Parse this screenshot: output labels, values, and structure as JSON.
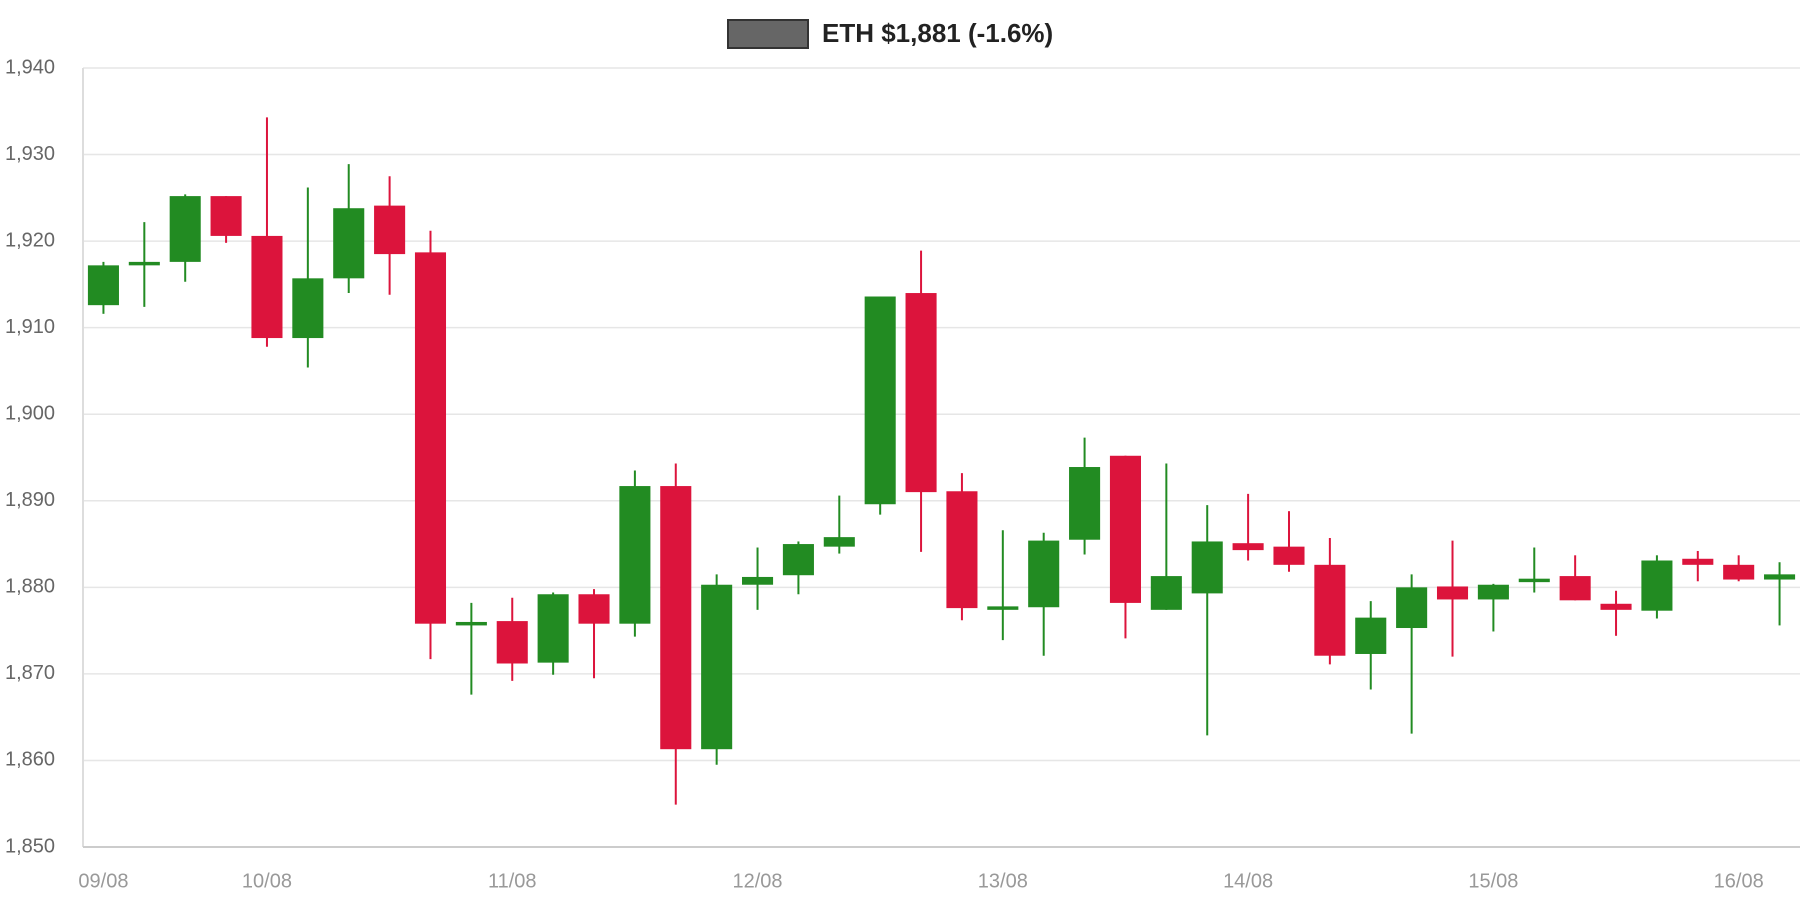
{
  "chart_data": {
    "type": "candlestick",
    "categories": [
      "09/08",
      null,
      null,
      null,
      "10/08",
      null,
      null,
      null,
      null,
      null,
      "11/08",
      null,
      null,
      null,
      null,
      null,
      "12/08",
      null,
      null,
      null,
      null,
      null,
      "13/08",
      null,
      null,
      null,
      null,
      null,
      "14/08",
      null,
      null,
      null,
      null,
      null,
      "15/08",
      null,
      null,
      null,
      null,
      null,
      "16/08",
      null
    ],
    "series": [
      {
        "name": "ETH $1,881 (-1.6%)",
        "color": "#666666",
        "up_color": "#228b22",
        "down_color": "#dc143c",
        "open": [
          1912.6,
          1917.2,
          1917.6,
          1925.2,
          1920.6,
          1908.8,
          1915.7,
          1924.1,
          1918.7,
          1875.6,
          1876.1,
          1871.3,
          1879.2,
          1875.8,
          1891.7,
          1861.3,
          1880.3,
          1881.4,
          1884.7,
          1889.6,
          1914.0,
          1891.1,
          1877.4,
          1877.7,
          1885.5,
          1895.2,
          1877.4,
          1879.3,
          1885.1,
          1884.7,
          1882.6,
          1872.3,
          1875.3,
          1880.1,
          1878.6,
          1880.6,
          1881.3,
          1878.1,
          1877.3,
          1883.3,
          1882.6,
          1880.9
        ],
        "high": [
          1917.6,
          1922.2,
          1925.4,
          1925.2,
          1934.3,
          1926.2,
          1928.9,
          1927.5,
          1921.2,
          1878.2,
          1878.8,
          1879.4,
          1879.8,
          1893.5,
          1894.3,
          1881.5,
          1884.6,
          1885.3,
          1890.6,
          1913.6,
          1918.9,
          1893.2,
          1886.6,
          1886.3,
          1897.3,
          1895.2,
          1894.3,
          1889.5,
          1890.8,
          1888.8,
          1885.7,
          1878.4,
          1881.5,
          1885.4,
          1880.4,
          1884.6,
          1883.7,
          1879.6,
          1883.7,
          1884.2,
          1883.7,
          1882.9
        ],
        "low": [
          1911.6,
          1912.4,
          1915.3,
          1919.8,
          1907.8,
          1905.4,
          1914.0,
          1913.8,
          1871.7,
          1867.6,
          1869.2,
          1869.9,
          1869.5,
          1874.3,
          1854.9,
          1859.5,
          1877.4,
          1879.2,
          1883.9,
          1888.4,
          1884.1,
          1876.2,
          1873.9,
          1872.1,
          1883.8,
          1874.1,
          1877.4,
          1862.9,
          1883.1,
          1881.8,
          1871.1,
          1868.2,
          1863.1,
          1872.0,
          1874.9,
          1879.4,
          1878.5,
          1874.4,
          1876.4,
          1880.7,
          1880.7,
          1875.6
        ],
        "close": [
          1917.2,
          1917.6,
          1925.2,
          1920.6,
          1908.8,
          1915.7,
          1923.8,
          1918.5,
          1875.8,
          1876.0,
          1871.2,
          1879.2,
          1875.8,
          1891.7,
          1861.3,
          1880.3,
          1881.2,
          1885.0,
          1885.8,
          1913.6,
          1891.0,
          1877.6,
          1877.8,
          1885.4,
          1893.9,
          1878.2,
          1881.3,
          1885.3,
          1884.3,
          1882.6,
          1872.1,
          1876.5,
          1880.0,
          1878.6,
          1880.3,
          1881.0,
          1878.5,
          1877.4,
          1883.1,
          1882.6,
          1880.9,
          1881.5
        ]
      }
    ],
    "ylim": [
      1850,
      1940
    ],
    "yticks": [
      {
        "value": 1850,
        "label": "1,850"
      },
      {
        "value": 1860,
        "label": "1,860"
      },
      {
        "value": 1870,
        "label": "1,870"
      },
      {
        "value": 1880,
        "label": "1,880"
      },
      {
        "value": 1890,
        "label": "1,890"
      },
      {
        "value": 1900,
        "label": "1,900"
      },
      {
        "value": 1910,
        "label": "1,910"
      },
      {
        "value": 1920,
        "label": "1,920"
      },
      {
        "value": 1930,
        "label": "1,930"
      },
      {
        "value": 1940,
        "label": "1,940"
      }
    ],
    "grid": true
  }
}
